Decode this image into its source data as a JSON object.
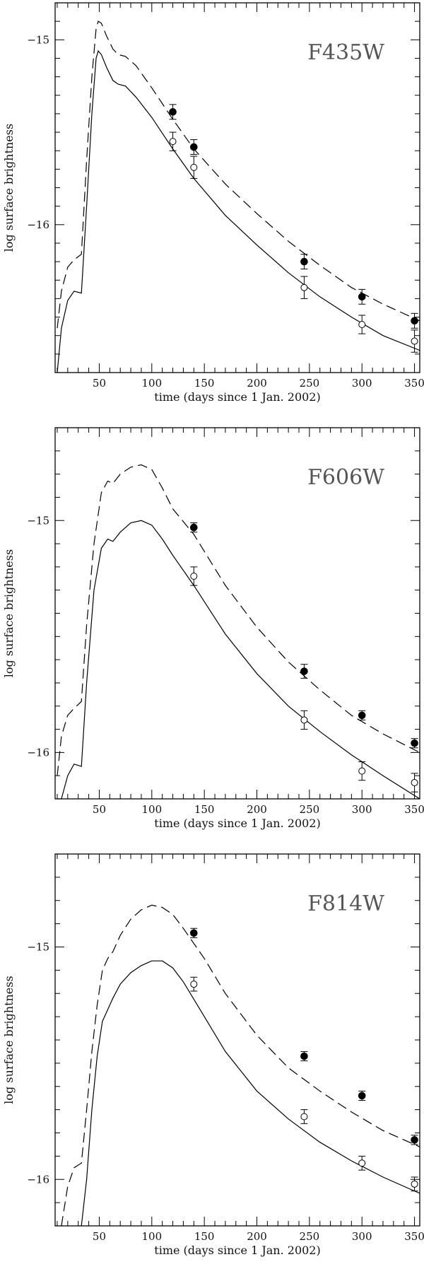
{
  "chart_data": [
    {
      "type": "line",
      "title": "F435W",
      "xlabel": "time (days since 1 Jan. 2002)",
      "ylabel": "log surface brightness",
      "xlim": [
        8,
        355
      ],
      "ylim": [
        -16.8,
        -14.8
      ],
      "xticks": [
        50,
        100,
        150,
        200,
        250,
        300,
        350
      ],
      "yticks": [
        -15,
        -16
      ],
      "ytick_labels": [
        "−15",
        "−16"
      ],
      "xtick_labels": [
        "50",
        "100",
        "150",
        "200",
        "250",
        "300",
        "350"
      ],
      "series": [
        {
          "name": "model (dashed)",
          "style": "dashed",
          "x": [
            10,
            14,
            20,
            26,
            33,
            38,
            43,
            47,
            49,
            52,
            57,
            63,
            68,
            75,
            85,
            100,
            120,
            140,
            170,
            200,
            230,
            260,
            290,
            320,
            355
          ],
          "y": [
            -16.56,
            -16.36,
            -16.23,
            -16.19,
            -16.16,
            -15.65,
            -15.2,
            -14.94,
            -14.9,
            -14.91,
            -14.98,
            -15.05,
            -15.08,
            -15.09,
            -15.14,
            -15.26,
            -15.43,
            -15.59,
            -15.78,
            -15.94,
            -16.09,
            -16.22,
            -16.34,
            -16.43,
            -16.52
          ]
        },
        {
          "name": "model (solid)",
          "style": "solid",
          "x": [
            10,
            14,
            20,
            26,
            33,
            38,
            43,
            47,
            49,
            52,
            57,
            63,
            68,
            75,
            85,
            100,
            120,
            140,
            170,
            200,
            230,
            260,
            290,
            320,
            355
          ],
          "y": [
            -16.8,
            -16.56,
            -16.41,
            -16.36,
            -16.37,
            -15.9,
            -15.4,
            -15.1,
            -15.06,
            -15.08,
            -15.15,
            -15.22,
            -15.24,
            -15.25,
            -15.31,
            -15.42,
            -15.59,
            -15.75,
            -15.95,
            -16.11,
            -16.26,
            -16.39,
            -16.5,
            -16.6,
            -16.68
          ]
        },
        {
          "name": "observed (filled)",
          "style": "points-filled",
          "x": [
            120,
            140,
            245,
            300,
            350
          ],
          "y": [
            -15.39,
            -15.58,
            -16.2,
            -16.39,
            -16.52
          ],
          "err": [
            0.04,
            0.04,
            0.04,
            0.04,
            0.04
          ]
        },
        {
          "name": "observed (open)",
          "style": "points-open",
          "x": [
            120,
            140,
            245,
            300,
            350
          ],
          "y": [
            -15.55,
            -15.69,
            -16.34,
            -16.54,
            -16.63
          ],
          "err": [
            0.05,
            0.06,
            0.06,
            0.05,
            0.06
          ]
        }
      ]
    },
    {
      "type": "line",
      "title": "F606W",
      "xlabel": "time (days since 1 Jan. 2002)",
      "ylabel": "log surface brightness",
      "xlim": [
        8,
        355
      ],
      "ylim": [
        -16.2,
        -14.6
      ],
      "xticks": [
        50,
        100,
        150,
        200,
        250,
        300,
        350
      ],
      "yticks": [
        -15,
        -16
      ],
      "ytick_labels": [
        "−15",
        "−16"
      ],
      "xtick_labels": [
        "50",
        "100",
        "150",
        "200",
        "250",
        "300",
        "350"
      ],
      "series": [
        {
          "name": "model (dashed)",
          "style": "dashed",
          "x": [
            10,
            14,
            20,
            26,
            33,
            38,
            45,
            52,
            58,
            63,
            70,
            80,
            90,
            100,
            110,
            120,
            140,
            170,
            200,
            230,
            260,
            290,
            320,
            355
          ],
          "y": [
            -16.1,
            -15.93,
            -15.84,
            -15.81,
            -15.78,
            -15.45,
            -15.1,
            -14.88,
            -14.83,
            -14.84,
            -14.8,
            -14.77,
            -14.76,
            -14.78,
            -14.86,
            -14.95,
            -15.06,
            -15.28,
            -15.46,
            -15.61,
            -15.73,
            -15.84,
            -15.92,
            -16.0
          ]
        },
        {
          "name": "model (solid)",
          "style": "solid",
          "x": [
            10,
            14,
            20,
            26,
            33,
            38,
            45,
            52,
            58,
            63,
            70,
            80,
            90,
            100,
            110,
            120,
            140,
            170,
            200,
            230,
            260,
            290,
            320,
            355
          ],
          "y": [
            -16.2,
            -16.2,
            -16.1,
            -16.05,
            -16.06,
            -15.7,
            -15.3,
            -15.12,
            -15.08,
            -15.09,
            -15.05,
            -15.01,
            -15.0,
            -15.02,
            -15.08,
            -15.15,
            -15.28,
            -15.49,
            -15.66,
            -15.8,
            -15.91,
            -16.01,
            -16.1,
            -16.2
          ]
        },
        {
          "name": "observed (filled)",
          "style": "points-filled",
          "x": [
            140,
            245,
            300,
            350
          ],
          "y": [
            -15.03,
            -15.65,
            -15.84,
            -15.96
          ],
          "err": [
            0.02,
            0.03,
            0.02,
            0.02
          ]
        },
        {
          "name": "observed (open)",
          "style": "points-open",
          "x": [
            140,
            245,
            300,
            350
          ],
          "y": [
            -15.24,
            -15.86,
            -16.08,
            -16.13
          ],
          "err": [
            0.04,
            0.04,
            0.04,
            0.04
          ]
        }
      ]
    },
    {
      "type": "line",
      "title": "F814W",
      "xlabel": "time (days since 1 Jan. 2002)",
      "ylabel": "log surface brightness",
      "xlim": [
        8,
        355
      ],
      "ylim": [
        -16.2,
        -14.6
      ],
      "xticks": [
        50,
        100,
        150,
        200,
        250,
        300,
        350
      ],
      "yticks": [
        -15,
        -16
      ],
      "ytick_labels": [
        "−15",
        "−16"
      ],
      "xtick_labels": [
        "50",
        "100",
        "150",
        "200",
        "250",
        "300",
        "350"
      ],
      "series": [
        {
          "name": "model (dashed)",
          "style": "dashed",
          "x": [
            14,
            20,
            26,
            33,
            38,
            43,
            48,
            53,
            58,
            63,
            70,
            80,
            90,
            100,
            110,
            120,
            130,
            150,
            170,
            200,
            230,
            260,
            290,
            320,
            355
          ],
          "y": [
            -16.2,
            -16.03,
            -15.95,
            -15.93,
            -15.7,
            -15.45,
            -15.25,
            -15.1,
            -15.05,
            -15.02,
            -14.95,
            -14.88,
            -14.84,
            -14.82,
            -14.83,
            -14.86,
            -14.92,
            -15.05,
            -15.2,
            -15.38,
            -15.52,
            -15.62,
            -15.71,
            -15.79,
            -15.86
          ]
        },
        {
          "name": "model (solid)",
          "style": "solid",
          "x": [
            33,
            38,
            43,
            48,
            53,
            58,
            63,
            70,
            80,
            90,
            100,
            110,
            120,
            130,
            150,
            170,
            200,
            230,
            260,
            290,
            320,
            355
          ],
          "y": [
            -16.2,
            -16.0,
            -15.7,
            -15.47,
            -15.32,
            -15.27,
            -15.22,
            -15.16,
            -15.11,
            -15.08,
            -15.06,
            -15.06,
            -15.09,
            -15.15,
            -15.3,
            -15.45,
            -15.62,
            -15.74,
            -15.84,
            -15.92,
            -15.99,
            -16.06
          ]
        },
        {
          "name": "observed (filled)",
          "style": "points-filled",
          "x": [
            140,
            245,
            300,
            350
          ],
          "y": [
            -14.94,
            -15.47,
            -15.64,
            -15.83
          ],
          "err": [
            0.02,
            0.02,
            0.02,
            0.02
          ]
        },
        {
          "name": "observed (open)",
          "style": "points-open",
          "x": [
            140,
            245,
            300,
            350
          ],
          "y": [
            -15.16,
            -15.73,
            -15.93,
            -16.02
          ],
          "err": [
            0.03,
            0.03,
            0.03,
            0.03
          ]
        }
      ]
    }
  ]
}
